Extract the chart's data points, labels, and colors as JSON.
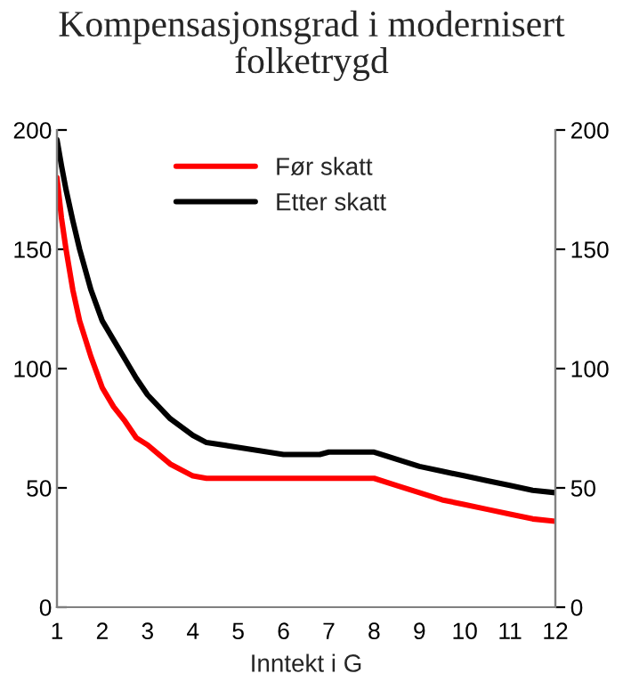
{
  "chart_data": {
    "type": "line",
    "title": "Kompensasjonsgrad i modernisert\nfolketrygd",
    "xlabel": "Inntekt i G",
    "xlim": [
      1,
      12
    ],
    "xticks": [
      1,
      2,
      3,
      4,
      5,
      6,
      7,
      8,
      9,
      10,
      11,
      12
    ],
    "ylim": [
      0,
      200
    ],
    "yticks": [
      0,
      50,
      100,
      150,
      200
    ],
    "y2lim": [
      0,
      200
    ],
    "y2ticks": [
      0,
      50,
      100,
      150,
      200
    ],
    "legend": "top",
    "grid": false,
    "marker": "none",
    "line_style": "solid",
    "series": [
      {
        "name": "Før skatt",
        "color": "#ff0000",
        "x": [
          1,
          1.1,
          1.2,
          1.35,
          1.5,
          1.75,
          2,
          2.25,
          2.5,
          2.75,
          3,
          3.5,
          4,
          4.3,
          5,
          6,
          7,
          8,
          8.5,
          9,
          9.5,
          10,
          10.5,
          11,
          11.5,
          12
        ],
        "values": [
          180,
          163,
          150,
          133,
          120,
          105,
          92,
          84,
          78,
          71,
          68,
          60,
          55,
          54,
          54,
          54,
          54,
          54,
          51,
          48,
          45,
          43,
          41,
          39,
          37,
          36
        ]
      },
      {
        "name": "Etter skatt",
        "color": "#000000",
        "x": [
          1,
          1.1,
          1.2,
          1.35,
          1.5,
          1.75,
          2,
          2.25,
          2.5,
          2.75,
          3,
          3.5,
          4,
          4.3,
          5,
          6,
          6.8,
          7,
          8,
          8.5,
          9,
          9.5,
          10,
          10.5,
          11,
          11.5,
          12
        ],
        "values": [
          196,
          185,
          175,
          162,
          150,
          133,
          120,
          112,
          104,
          96,
          89,
          79,
          72,
          69,
          67,
          64,
          64,
          65,
          65,
          62,
          59,
          57,
          55,
          53,
          51,
          49,
          48
        ]
      }
    ]
  }
}
